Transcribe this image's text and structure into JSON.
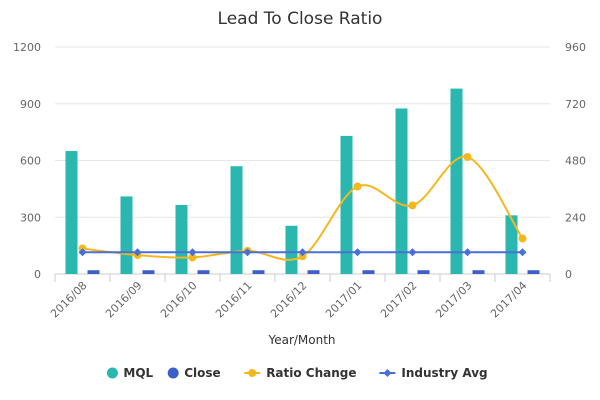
{
  "chart_data": {
    "type": "bar",
    "title": "Lead To Close Ratio",
    "xlabel": "Year/Month",
    "categories": [
      "2016/08",
      "2016/09",
      "2016/10",
      "2016/11",
      "2016/12",
      "2017/01",
      "2017/02",
      "2017/03",
      "2017/04"
    ],
    "y_left": {
      "ticks": [
        "0",
        "300",
        "600",
        "900",
        "1200"
      ],
      "min": 0,
      "max": 1200
    },
    "y_right": {
      "ticks": [
        "0",
        "240",
        "480",
        "720",
        "960"
      ],
      "min": 0,
      "max": 960
    },
    "grid": true,
    "legend_position": "bottom",
    "series": [
      {
        "name": "MQL",
        "type": "bar",
        "axis": "left",
        "color": "#2ab7b0",
        "marker": "circle",
        "values": [
          650,
          410,
          365,
          570,
          255,
          730,
          875,
          980,
          310
        ]
      },
      {
        "name": "Close",
        "type": "bar",
        "axis": "left",
        "color": "#3f5fc8",
        "marker": "circle",
        "values": [
          20,
          20,
          20,
          20,
          20,
          20,
          20,
          20,
          20
        ]
      },
      {
        "name": "Ratio Change",
        "type": "line",
        "axis": "right",
        "color": "#f4b81f",
        "marker": "circle",
        "smooth": true,
        "values": [
          108,
          80,
          70,
          98,
          75,
          370,
          290,
          495,
          150
        ]
      },
      {
        "name": "Industry Avg",
        "type": "line",
        "axis": "right",
        "color": "#4a6fd6",
        "marker": "diamond",
        "smooth": false,
        "values": [
          92,
          92,
          92,
          92,
          92,
          92,
          92,
          92,
          92
        ]
      }
    ]
  }
}
